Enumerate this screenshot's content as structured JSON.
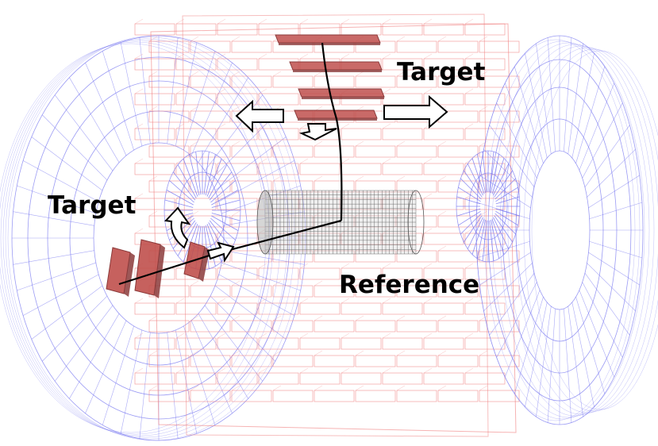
{
  "labels": {
    "target_top": "Target",
    "target_left": "Target",
    "reference": "Reference"
  },
  "colors": {
    "barrel_wireframe": "#f08080",
    "endcap_wireframe": "#7070f0",
    "chamber_fill": "#c0504d",
    "chamber_dark": "#8b3a3a",
    "reference_cylinder": "#555555",
    "track": "#000000",
    "arrow_fill": "#ffffff",
    "arrow_stroke": "#000000"
  },
  "icons": {
    "arrow_left": "arrow-left-icon",
    "arrow_right": "arrow-right-icon",
    "arrow_down": "arrow-down-icon",
    "arrow_rotate": "rotate-arrow-icon",
    "arrow_small": "small-arrow-icon"
  }
}
